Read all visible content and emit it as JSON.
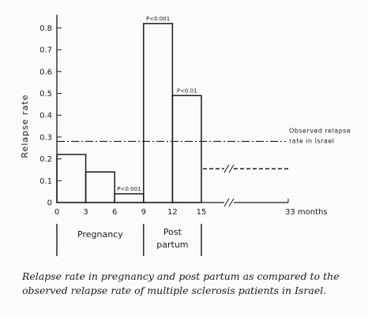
{
  "chart_data": {
    "type": "bar",
    "ylabel": "Relapse rate",
    "yticks": [
      0,
      0.1,
      0.2,
      0.3,
      0.4,
      0.5,
      0.6,
      0.7,
      0.8
    ],
    "ytick_labels": [
      "0",
      "0.1",
      "0.2",
      "0.3",
      "0.4",
      "0.5",
      "0.6",
      "0.7",
      "0.8"
    ],
    "ylim": [
      0,
      0.86
    ],
    "xticks": [
      0,
      3,
      6,
      9,
      12,
      15
    ],
    "xtick_labels": [
      "0",
      "3",
      "6",
      "9",
      "12",
      "15"
    ],
    "x_end_label": "33 months",
    "bars": [
      {
        "x0": 0,
        "x1": 3,
        "value": 0.22,
        "label": ""
      },
      {
        "x0": 3,
        "x1": 6,
        "value": 0.14,
        "label": ""
      },
      {
        "x0": 6,
        "x1": 9,
        "value": 0.04,
        "label": "P<0.001"
      },
      {
        "x0": 9,
        "x1": 12,
        "value": 0.82,
        "label": "P<0.001"
      },
      {
        "x0": 12,
        "x1": 15,
        "value": 0.49,
        "label": "P<0.01"
      }
    ],
    "continuation": {
      "from_x": 15,
      "value": 0.155,
      "style": "dashed"
    },
    "reference_line": {
      "value": 0.28,
      "style": "dash-dot",
      "label_line1": "Observed relapse",
      "label_line2": "rate in Israel"
    },
    "periods": [
      {
        "name": "Pregnancy",
        "x0": 0,
        "x1": 9
      },
      {
        "name": "Post partum",
        "x0": 9,
        "x1": 15
      }
    ]
  },
  "caption": "Relapse rate in pregnancy and post partum as compared to the observed relapse rate of multiple sclerosis patients in Israel."
}
